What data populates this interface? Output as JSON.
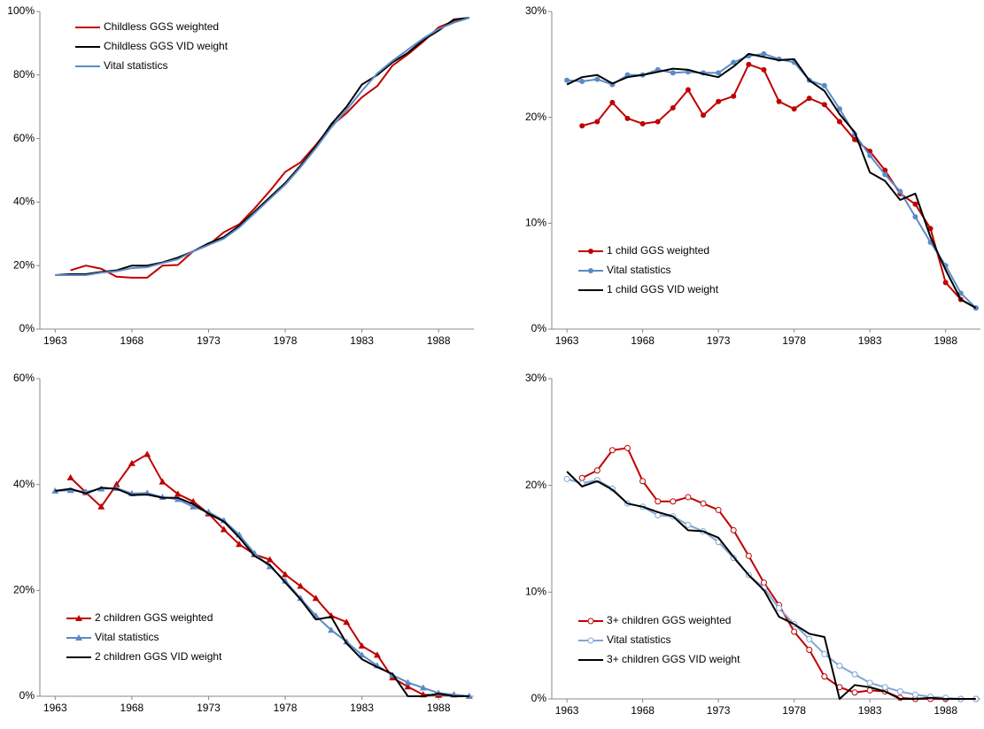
{
  "chart_data": [
    {
      "type": "line",
      "legend": "upper left",
      "x": [
        1963,
        1964,
        1965,
        1966,
        1967,
        1968,
        1969,
        1970,
        1971,
        1972,
        1973,
        1974,
        1975,
        1976,
        1977,
        1978,
        1979,
        1980,
        1981,
        1982,
        1983,
        1984,
        1985,
        1986,
        1987,
        1988,
        1989,
        1990
      ],
      "xlim": [
        1962,
        1990.3
      ],
      "xticks": [
        1963,
        1968,
        1973,
        1978,
        1983,
        1988
      ],
      "ylim": [
        0,
        100
      ],
      "yticks": [
        {
          "value": 0,
          "label": "0%"
        },
        {
          "value": 20,
          "label": "20%"
        },
        {
          "value": 40,
          "label": "40%"
        },
        {
          "value": 60,
          "label": "60%"
        },
        {
          "value": 80,
          "label": "80%"
        },
        {
          "value": 100,
          "label": "100%"
        }
      ],
      "series": [
        {
          "name": "Childless GGS weighted",
          "color": "#c00000",
          "marker": null,
          "values": [
            null,
            18.5,
            20,
            19,
            16.5,
            16.2,
            16.2,
            20,
            20.2,
            24.5,
            26.5,
            30.5,
            33,
            38,
            43.5,
            49.5,
            52.5,
            58,
            64,
            68,
            73,
            76.5,
            83,
            86.5,
            90.5,
            95,
            97,
            98
          ]
        },
        {
          "name": "Childless GGS VID weight",
          "color": "#000000",
          "marker": null,
          "values": [
            17,
            17.3,
            17.3,
            18,
            18.5,
            20,
            20,
            21,
            22.5,
            24.5,
            27,
            29,
            32.5,
            37,
            41.5,
            46,
            51.5,
            57.5,
            64.5,
            70,
            77,
            80,
            84,
            87,
            91,
            94,
            97.5,
            98
          ]
        },
        {
          "name": "Vital statistics",
          "color": "#5b8bc7",
          "marker": null,
          "values": [
            17,
            17,
            17,
            17.8,
            18.2,
            19.2,
            19.5,
            20.8,
            22,
            24.5,
            26.5,
            28.5,
            32,
            36.5,
            41,
            45.5,
            51,
            57,
            63.5,
            69,
            75,
            80.5,
            84.5,
            88,
            91.5,
            94.5,
            96.5,
            98
          ]
        }
      ]
    },
    {
      "type": "line",
      "legend": "lower left",
      "x": [
        1963,
        1964,
        1965,
        1966,
        1967,
        1968,
        1969,
        1970,
        1971,
        1972,
        1973,
        1974,
        1975,
        1976,
        1977,
        1978,
        1979,
        1980,
        1981,
        1982,
        1983,
        1984,
        1985,
        1986,
        1987,
        1988,
        1989,
        1990
      ],
      "xlim": [
        1962,
        1990.3
      ],
      "xticks": [
        1963,
        1968,
        1973,
        1978,
        1983,
        1988
      ],
      "ylim": [
        0,
        30
      ],
      "yticks": [
        {
          "value": 0,
          "label": "0%"
        },
        {
          "value": 10,
          "label": "10%"
        },
        {
          "value": 20,
          "label": "20%"
        },
        {
          "value": 30,
          "label": "30%"
        }
      ],
      "series": [
        {
          "name": "1 child GGS weighted",
          "color": "#c00000",
          "marker": "circle",
          "values": [
            null,
            19.2,
            19.6,
            21.4,
            19.9,
            19.4,
            19.6,
            20.9,
            22.6,
            20.2,
            21.5,
            22,
            25,
            24.5,
            21.5,
            20.8,
            21.8,
            21.2,
            19.6,
            17.9,
            16.8,
            15,
            12.8,
            11.8,
            9.5,
            4.4,
            2.8,
            2
          ]
        },
        {
          "name": "Vital statistics",
          "color": "#5b8bc7",
          "marker": "circle",
          "values": [
            23.5,
            23.4,
            23.6,
            23.1,
            24,
            24,
            24.5,
            24.2,
            24.3,
            24.2,
            24.2,
            25.2,
            25.8,
            26,
            25.5,
            25.2,
            23.5,
            23,
            20.8,
            18.4,
            16.4,
            14.6,
            13,
            10.6,
            8.2,
            6,
            3.4,
            2
          ]
        },
        {
          "name": "1 child GGS VID weight",
          "color": "#000000",
          "marker": null,
          "values": [
            23.1,
            23.8,
            24,
            23.2,
            23.8,
            24,
            24.3,
            24.6,
            24.5,
            24.1,
            23.8,
            24.8,
            26,
            25.7,
            25.4,
            25.5,
            23.5,
            22.5,
            20.3,
            18.6,
            14.8,
            14,
            12.2,
            12.8,
            8.7,
            5.6,
            2.8,
            2
          ]
        }
      ]
    },
    {
      "type": "line",
      "legend": "lower left",
      "x": [
        1963,
        1964,
        1965,
        1966,
        1967,
        1968,
        1969,
        1970,
        1971,
        1972,
        1973,
        1974,
        1975,
        1976,
        1977,
        1978,
        1979,
        1980,
        1981,
        1982,
        1983,
        1984,
        1985,
        1986,
        1987,
        1988,
        1989,
        1990
      ],
      "xlim": [
        1962,
        1990.3
      ],
      "xticks": [
        1963,
        1968,
        1973,
        1978,
        1983,
        1988
      ],
      "ylim": [
        0,
        60
      ],
      "yticks": [
        {
          "value": 0,
          "label": "0%"
        },
        {
          "value": 20,
          "label": "20%"
        },
        {
          "value": 40,
          "label": "40%"
        },
        {
          "value": 60,
          "label": "60%"
        }
      ],
      "series": [
        {
          "name": "2 children GGS weighted",
          "color": "#c00000",
          "marker": "triangle",
          "values": [
            null,
            41.3,
            38.5,
            35.8,
            40,
            44,
            45.7,
            40.5,
            38.2,
            36.8,
            34.5,
            31.5,
            28.7,
            26.8,
            25.8,
            23,
            20.8,
            18.5,
            15.2,
            14,
            9.5,
            7.8,
            3.5,
            1.8,
            0.3,
            0.2,
            0.3,
            0
          ]
        },
        {
          "name": "Vital statistics",
          "color": "#5b8bc7",
          "marker": "triangle",
          "values": [
            38.8,
            38.9,
            38.6,
            39.2,
            39.3,
            38.3,
            38.4,
            37.6,
            37.2,
            35.8,
            34.8,
            33.2,
            30.5,
            27,
            24.5,
            21.8,
            18.5,
            15.2,
            12.5,
            10.3,
            7.8,
            5.8,
            4,
            2.6,
            1.6,
            0.6,
            0.3,
            0
          ]
        },
        {
          "name": "2 children GGS VID weight",
          "color": "#000000",
          "marker": null,
          "values": [
            38.8,
            39.2,
            38.3,
            39.4,
            39.2,
            38,
            38.1,
            37.5,
            37.5,
            36.3,
            34.5,
            33,
            30,
            26.5,
            24.8,
            21.5,
            18.3,
            14.5,
            15,
            10,
            7,
            5.5,
            4.2,
            0,
            0,
            0.5,
            0,
            0
          ]
        }
      ]
    },
    {
      "type": "line",
      "legend": "lower left",
      "x": [
        1963,
        1964,
        1965,
        1966,
        1967,
        1968,
        1969,
        1970,
        1971,
        1972,
        1973,
        1974,
        1975,
        1976,
        1977,
        1978,
        1979,
        1980,
        1981,
        1982,
        1983,
        1984,
        1985,
        1986,
        1987,
        1988,
        1989,
        1990
      ],
      "xlim": [
        1962,
        1990.3
      ],
      "xticks": [
        1963,
        1968,
        1973,
        1978,
        1983,
        1988
      ],
      "ylim": [
        0,
        30
      ],
      "yticks": [
        {
          "value": 0,
          "label": "0%"
        },
        {
          "value": 10,
          "label": "10%"
        },
        {
          "value": 20,
          "label": "20%"
        },
        {
          "value": 30,
          "label": "30%"
        }
      ],
      "series": [
        {
          "name": "3+ children GGS weighted",
          "color": "#c00000",
          "marker": "open-circle",
          "values": [
            null,
            20.7,
            21.4,
            23.3,
            23.5,
            20.4,
            18.5,
            18.5,
            18.9,
            18.3,
            17.7,
            15.8,
            13.4,
            10.9,
            8.8,
            6.3,
            4.6,
            2.1,
            1.1,
            0.6,
            0.8,
            0.7,
            0.1,
            0,
            0,
            0,
            0,
            0
          ]
        },
        {
          "name": "Vital statistics",
          "color": "#7fa6d4",
          "marker": "open-circle",
          "values": [
            20.6,
            20.2,
            20.5,
            19.7,
            18.3,
            18,
            17.2,
            17.1,
            16.3,
            15.7,
            14.7,
            13.2,
            11.6,
            10.4,
            8.5,
            7,
            5.6,
            4.2,
            3.1,
            2.3,
            1.5,
            1.1,
            0.7,
            0.4,
            0.2,
            0.1,
            0,
            0
          ]
        },
        {
          "name": "3+ children GGS VID weight",
          "color": "#000000",
          "marker": null,
          "values": [
            21.3,
            19.9,
            20.4,
            19.6,
            18.3,
            18,
            17.5,
            17.1,
            15.8,
            15.7,
            15.1,
            13.3,
            11.6,
            10.2,
            7.7,
            7,
            6.1,
            5.8,
            0,
            1.3,
            1.1,
            0.7,
            0,
            0,
            0.1,
            0,
            0,
            0
          ]
        }
      ]
    }
  ]
}
